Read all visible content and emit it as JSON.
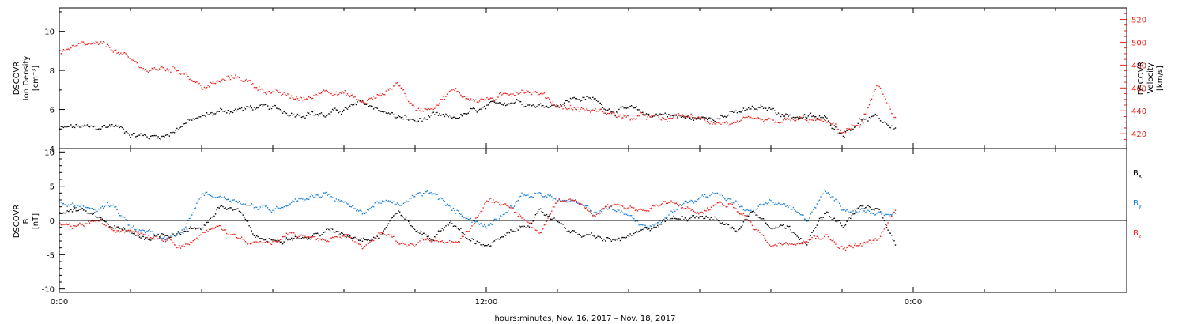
{
  "xlabel": "hours:minutes, Nov. 16, 2017 – Nov. 18, 2017",
  "xlim_hours": [
    0,
    30
  ],
  "x_major_ticks": [
    {
      "h": 0,
      "label": "0:00"
    },
    {
      "h": 12,
      "label": "12:00"
    },
    {
      "h": 24,
      "label": "0:00"
    }
  ],
  "colors": {
    "axis": "#000000",
    "black": "#000000",
    "red": "#e8241f",
    "blue": "#1a7fd6"
  },
  "chart_data": [
    {
      "type": "scatter",
      "panel": "top",
      "ylabel": [
        "DSCOVR",
        "Ion Density",
        "[cm⁻³]"
      ],
      "ylim": [
        4,
        11.2
      ],
      "y_ticks": [
        4,
        6,
        8,
        10
      ],
      "y2label": [
        "DSCOVR",
        "Velocity",
        "[km/s]"
      ],
      "y2lim": [
        407,
        530
      ],
      "y2_ticks": [
        420,
        440,
        460,
        480,
        500,
        520
      ],
      "series": [
        {
          "color": "black",
          "axis": "left",
          "x": [
            0,
            0.5,
            1,
            1.5,
            2,
            2.5,
            3,
            3.5,
            4,
            4.5,
            5,
            5.5,
            6,
            6.5,
            7,
            7.5,
            8,
            8.5,
            9,
            9.5,
            10,
            10.5,
            11,
            11.5,
            12,
            12.5,
            13,
            13.5,
            14,
            14.5,
            15,
            15.5,
            16,
            16.5,
            17,
            17.5,
            18,
            18.5,
            19,
            19.5,
            20,
            20.5,
            21,
            21.5,
            22,
            22.5,
            23,
            23.5
          ],
          "values": [
            5.0,
            5.1,
            5.0,
            5.2,
            4.8,
            4.6,
            4.7,
            5.3,
            5.6,
            5.9,
            6.0,
            6.1,
            6.0,
            5.8,
            5.9,
            5.7,
            6.0,
            6.3,
            6.0,
            5.6,
            5.4,
            5.6,
            5.5,
            5.8,
            6.0,
            6.4,
            6.5,
            6.2,
            6.3,
            6.6,
            6.5,
            6.0,
            6.0,
            5.7,
            5.8,
            5.6,
            5.5,
            5.7,
            5.8,
            6.0,
            6.0,
            5.7,
            5.6,
            5.5,
            4.8,
            5.5,
            5.5,
            5.0
          ]
        },
        {
          "color": "red",
          "axis": "right",
          "x": [
            0,
            0.5,
            1,
            1.5,
            2,
            2.5,
            3,
            3.5,
            4,
            4.5,
            5,
            5.5,
            6,
            6.5,
            7,
            7.5,
            8,
            8.5,
            9,
            9.5,
            10,
            10.5,
            11,
            11.5,
            12,
            12.5,
            13,
            13.5,
            14,
            14.5,
            15,
            15.5,
            16,
            16.5,
            17,
            17.5,
            18,
            18.5,
            19,
            19.5,
            20,
            20.5,
            21,
            21.5,
            22,
            22.5,
            23,
            23.5
          ],
          "values": [
            493,
            495,
            497,
            494,
            483,
            475,
            477,
            475,
            460,
            465,
            470,
            462,
            456,
            451,
            450,
            460,
            455,
            447,
            453,
            465,
            440,
            445,
            458,
            451,
            450,
            452,
            460,
            455,
            445,
            442,
            440,
            438,
            433,
            435,
            431,
            436,
            432,
            431,
            428,
            430,
            429,
            431,
            432,
            430,
            422,
            428,
            460,
            435
          ]
        }
      ]
    },
    {
      "type": "scatter",
      "panel": "bottom",
      "ylabel": [
        "DSCOVR",
        "B",
        "[nT]"
      ],
      "ylim": [
        -10.5,
        10.5
      ],
      "y_ticks": [
        -10,
        -5,
        0,
        5,
        10
      ],
      "legend": [
        {
          "base": "B",
          "sub": "x",
          "color": "black"
        },
        {
          "base": "B",
          "sub": "y",
          "color": "blue"
        },
        {
          "base": "B",
          "sub": "z",
          "color": "red"
        }
      ],
      "legend_position": "right",
      "series": [
        {
          "color": "black",
          "x": [
            0,
            0.5,
            1,
            1.5,
            2,
            2.5,
            3,
            3.5,
            4,
            4.5,
            5,
            5.5,
            6,
            6.5,
            7,
            7.5,
            8,
            8.5,
            9,
            9.5,
            10,
            10.5,
            11,
            11.5,
            12,
            12.5,
            13,
            13.5,
            14,
            14.5,
            15,
            15.5,
            16,
            16.5,
            17,
            17.5,
            18,
            18.5,
            19,
            19.5,
            20,
            20.5,
            21,
            21.5,
            22,
            22.5,
            23,
            23.5
          ],
          "values": [
            1.0,
            1.5,
            0.5,
            -1.0,
            -2.0,
            -2.5,
            -2.0,
            -1.5,
            -1.0,
            2.0,
            1.5,
            -2.5,
            -3.0,
            -2.0,
            -2.5,
            -1.5,
            -2.0,
            -2.5,
            -2.0,
            1.5,
            -1.5,
            -2.5,
            0.0,
            -3.0,
            -3.5,
            -2.5,
            -1.0,
            1.0,
            0.0,
            -2.0,
            -2.5,
            -3.0,
            -2.5,
            -1.5,
            0.0,
            0.5,
            1.0,
            0.0,
            -1.5,
            1.5,
            -0.5,
            -1.0,
            -3.0,
            1.0,
            -1.0,
            2.0,
            1.5,
            -3.0
          ]
        },
        {
          "color": "blue",
          "x": [
            0,
            0.5,
            1,
            1.5,
            2,
            2.5,
            3,
            3.5,
            4,
            4.5,
            5,
            5.5,
            6,
            6.5,
            7,
            7.5,
            8,
            8.5,
            9,
            9.5,
            10,
            10.5,
            11,
            11.5,
            12,
            12.5,
            13,
            13.5,
            14,
            14.5,
            15,
            15.5,
            16,
            16.5,
            17,
            17.5,
            18,
            18.5,
            19,
            19.5,
            20,
            20.5,
            21,
            21.5,
            22,
            22.5,
            23,
            23.5
          ],
          "values": [
            2.5,
            2.0,
            1.5,
            2.5,
            -1.0,
            -2.0,
            -3.0,
            -1.5,
            4.0,
            3.5,
            3.0,
            2.0,
            1.5,
            3.0,
            3.5,
            4.0,
            2.5,
            1.0,
            3.0,
            2.0,
            3.5,
            4.0,
            1.5,
            0.5,
            -1.0,
            1.5,
            3.5,
            4.0,
            3.0,
            2.5,
            1.0,
            2.0,
            0.5,
            -1.0,
            0.0,
            2.5,
            3.5,
            4.0,
            2.5,
            1.5,
            3.0,
            2.0,
            0.0,
            4.0,
            2.0,
            1.5,
            1.0,
            0.5
          ]
        },
        {
          "color": "red",
          "x": [
            0,
            0.5,
            1,
            1.5,
            2,
            2.5,
            3,
            3.5,
            4,
            4.5,
            5,
            5.5,
            6,
            6.5,
            7,
            7.5,
            8,
            8.5,
            9,
            9.5,
            10,
            10.5,
            11,
            11.5,
            12,
            12.5,
            13,
            13.5,
            14,
            14.5,
            15,
            15.5,
            16,
            16.5,
            17,
            17.5,
            18,
            18.5,
            19,
            19.5,
            20,
            20.5,
            21,
            21.5,
            22,
            22.5,
            23,
            23.5
          ],
          "values": [
            -0.5,
            -1.0,
            0.0,
            -1.5,
            -1.0,
            -2.0,
            -2.5,
            -3.5,
            -2.0,
            -1.0,
            -2.5,
            -3.0,
            -3.5,
            -2.0,
            -2.5,
            -3.0,
            -2.5,
            -4.0,
            -2.0,
            -3.0,
            -3.5,
            -2.5,
            -3.0,
            -2.0,
            3.0,
            2.5,
            1.0,
            -2.0,
            2.5,
            3.0,
            1.0,
            2.5,
            2.0,
            1.5,
            2.5,
            2.0,
            1.0,
            2.5,
            2.0,
            -1.0,
            -3.5,
            -3.0,
            -2.5,
            -2.0,
            -4.0,
            -3.5,
            -3.0,
            1.5
          ]
        }
      ]
    }
  ]
}
